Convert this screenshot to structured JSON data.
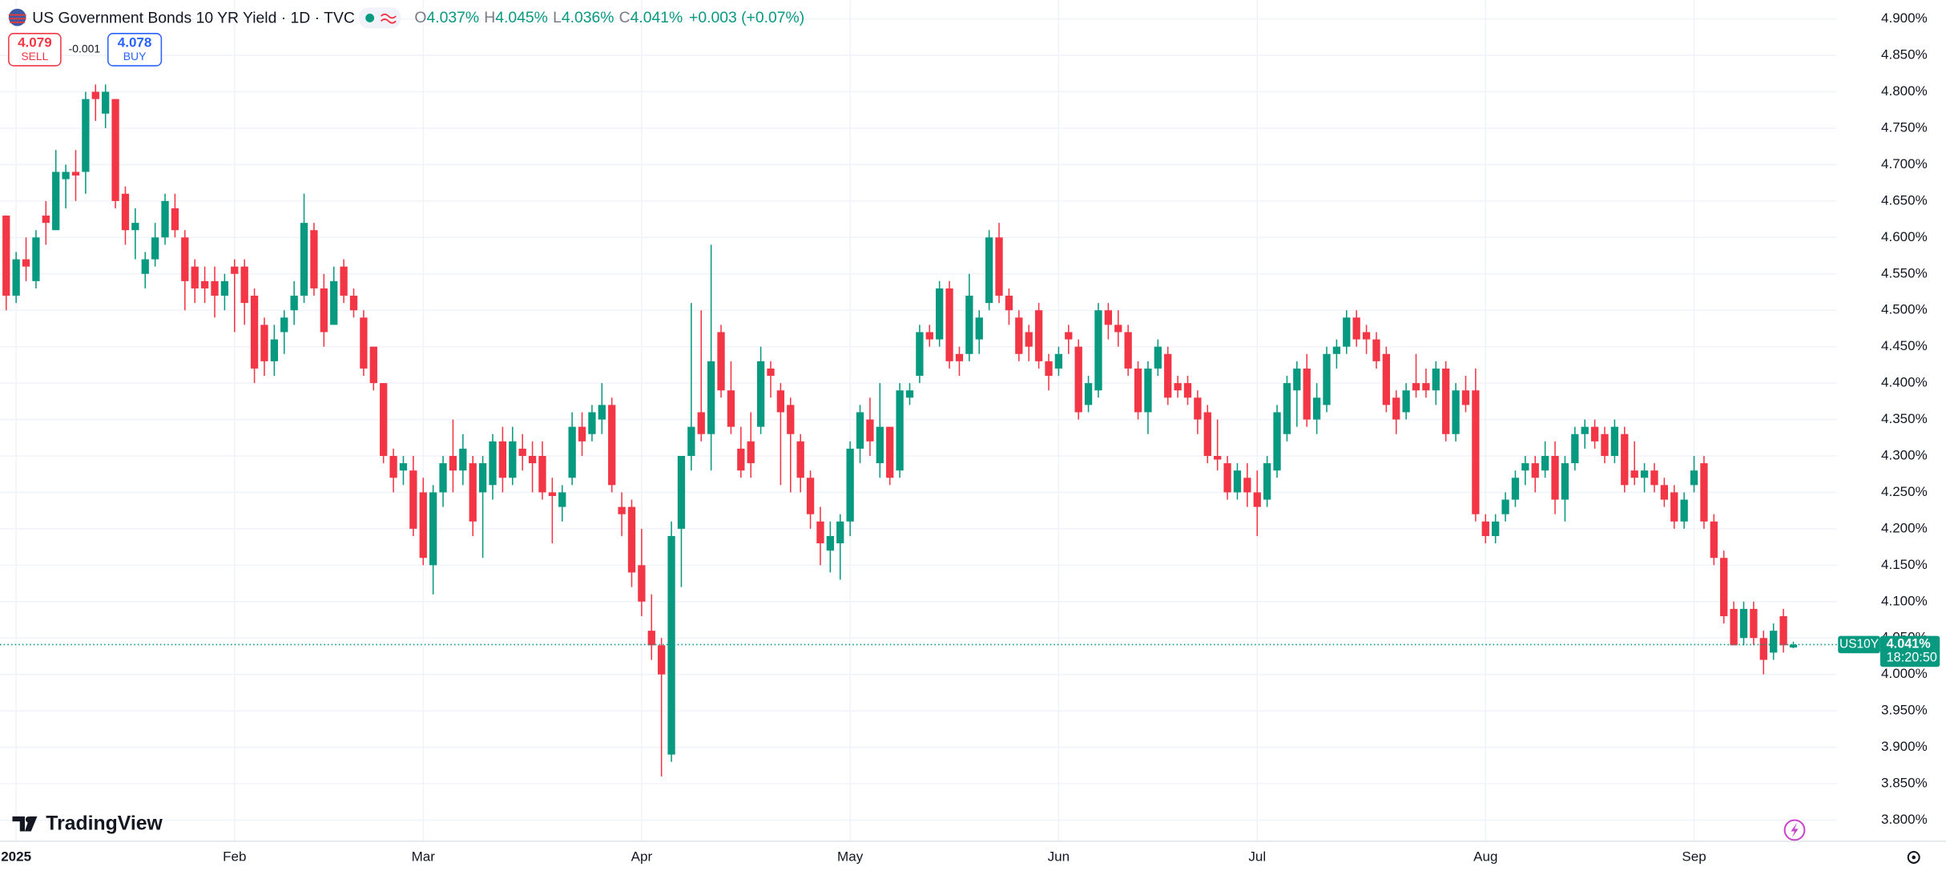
{
  "chart_data": {
    "type": "candlestick",
    "title": "US Government Bonds 10 YR Yield · 1D · TVC",
    "ohlc_legend": {
      "prefixes": [
        "O",
        "H",
        "L",
        "C"
      ],
      "labels": [
        "4.037%",
        "4.045%",
        "4.036%",
        "4.041%"
      ],
      "change": "+0.003 (+0.07%)"
    },
    "trade": {
      "sell_price": 4.079,
      "sell_label": "SELL",
      "spread": -0.001,
      "buy_price": 4.078,
      "buy_label": "BUY"
    },
    "logo": "TradingView",
    "last_price": {
      "symbol": "US10Y",
      "label": "4.041%",
      "countdown": "18:20:50"
    },
    "up_color": "#089981",
    "down_color": "#f23645",
    "ylim": [
      3.771,
      4.926
    ],
    "yticks": [
      {
        "value": 3.8,
        "label": "3.800%"
      },
      {
        "value": 3.85,
        "label": "3.850%"
      },
      {
        "value": 3.9,
        "label": "3.900%"
      },
      {
        "value": 3.95,
        "label": "3.950%"
      },
      {
        "value": 4.0,
        "label": "4.000%"
      },
      {
        "value": 4.05,
        "label": "4.050%"
      },
      {
        "value": 4.1,
        "label": "4.100%"
      },
      {
        "value": 4.15,
        "label": "4.150%"
      },
      {
        "value": 4.2,
        "label": "4.200%"
      },
      {
        "value": 4.25,
        "label": "4.250%"
      },
      {
        "value": 4.3,
        "label": "4.300%"
      },
      {
        "value": 4.35,
        "label": "4.350%"
      },
      {
        "value": 4.4,
        "label": "4.400%"
      },
      {
        "value": 4.45,
        "label": "4.450%"
      },
      {
        "value": 4.5,
        "label": "4.500%"
      },
      {
        "value": 4.55,
        "label": "4.550%"
      },
      {
        "value": 4.6,
        "label": "4.600%"
      },
      {
        "value": 4.65,
        "label": "4.650%"
      },
      {
        "value": 4.7,
        "label": "4.700%"
      },
      {
        "value": 4.75,
        "label": "4.750%"
      },
      {
        "value": 4.8,
        "label": "4.800%"
      },
      {
        "value": 4.85,
        "label": "4.850%"
      },
      {
        "value": 4.9,
        "label": "4.900%"
      }
    ],
    "xticks": [
      {
        "value": 1,
        "label": "2025"
      },
      {
        "value": 23,
        "label": "Feb"
      },
      {
        "value": 42,
        "label": "Mar"
      },
      {
        "value": 64,
        "label": "Apr"
      },
      {
        "value": 85,
        "label": "May"
      },
      {
        "value": 106,
        "label": "Jun"
      },
      {
        "value": 126,
        "label": "Jul"
      },
      {
        "value": 149,
        "label": "Aug"
      },
      {
        "value": 170,
        "label": "Sep"
      }
    ],
    "open": [
      4.63,
      4.52,
      4.57,
      4.54,
      4.63,
      4.61,
      4.68,
      4.69,
      4.69,
      4.8,
      4.77,
      4.79,
      4.66,
      4.61,
      4.55,
      4.57,
      4.6,
      4.64,
      4.6,
      4.56,
      4.54,
      4.54,
      4.52,
      4.56,
      4.56,
      4.52,
      4.48,
      4.43,
      4.47,
      4.5,
      4.52,
      4.61,
      4.53,
      4.48,
      4.56,
      4.52,
      4.49,
      4.45,
      4.4,
      4.3,
      4.28,
      4.28,
      4.25,
      4.15,
      4.25,
      4.3,
      4.28,
      4.29,
      4.25,
      4.26,
      4.32,
      4.27,
      4.31,
      4.3,
      4.3,
      4.25,
      4.23,
      4.27,
      4.34,
      4.33,
      4.35,
      4.37,
      4.23,
      4.23,
      4.15,
      4.06,
      4.04,
      3.89,
      4.2,
      4.3,
      4.36,
      4.33,
      4.47,
      4.39,
      4.31,
      4.32,
      4.34,
      4.42,
      4.39,
      4.37,
      4.32,
      4.27,
      4.21,
      4.17,
      4.18,
      4.21,
      4.31,
      4.35,
      4.29,
      4.34,
      4.28,
      4.38,
      4.41,
      4.47,
      4.46,
      4.53,
      4.44,
      4.44,
      4.46,
      4.51,
      4.6,
      4.52,
      4.49,
      4.47,
      4.5,
      4.43,
      4.42,
      4.47,
      4.45,
      4.37,
      4.39,
      4.5,
      4.48,
      4.47,
      4.42,
      4.36,
      4.42,
      4.44,
      4.4,
      4.4,
      4.38,
      4.36,
      4.3,
      4.29,
      4.25,
      4.27,
      4.25,
      4.24,
      4.28,
      4.33,
      4.39,
      4.42,
      4.35,
      4.37,
      4.44,
      4.45,
      4.49,
      4.47,
      4.46,
      4.44,
      4.38,
      4.36,
      4.4,
      4.4,
      4.39,
      4.42,
      4.33,
      4.39,
      4.39,
      4.21,
      4.19,
      4.22,
      4.24,
      4.28,
      4.29,
      4.28,
      4.3,
      4.24,
      4.29,
      4.33,
      4.34,
      4.33,
      4.3,
      4.33,
      4.28,
      4.27,
      4.28,
      4.26,
      4.25,
      4.21,
      4.26,
      4.29,
      4.21,
      4.16,
      4.09,
      4.05,
      4.09,
      4.05,
      4.03,
      4.08,
      4.037
    ],
    "high": [
      4.63,
      4.58,
      4.6,
      4.61,
      4.65,
      4.72,
      4.7,
      4.72,
      4.8,
      4.81,
      4.81,
      4.79,
      4.67,
      4.64,
      4.58,
      4.62,
      4.66,
      4.66,
      4.61,
      4.57,
      4.56,
      4.56,
      4.55,
      4.57,
      4.57,
      4.53,
      4.49,
      4.48,
      4.5,
      4.54,
      4.66,
      4.62,
      4.55,
      4.56,
      4.57,
      4.53,
      4.5,
      4.45,
      4.4,
      4.31,
      4.3,
      4.3,
      4.27,
      4.26,
      4.3,
      4.35,
      4.33,
      4.3,
      4.3,
      4.33,
      4.34,
      4.34,
      4.33,
      4.32,
      4.32,
      4.27,
      4.26,
      4.36,
      4.36,
      4.37,
      4.4,
      4.38,
      4.25,
      4.24,
      4.2,
      4.11,
      4.05,
      4.21,
      4.3,
      4.51,
      4.5,
      4.59,
      4.48,
      4.43,
      4.34,
      4.36,
      4.45,
      4.43,
      4.4,
      4.38,
      4.33,
      4.28,
      4.23,
      4.21,
      4.22,
      4.32,
      4.37,
      4.38,
      4.4,
      4.34,
      4.4,
      4.4,
      4.48,
      4.48,
      4.54,
      4.54,
      4.45,
      4.55,
      4.5,
      4.61,
      4.62,
      4.53,
      4.5,
      4.48,
      4.51,
      4.44,
      4.45,
      4.48,
      4.46,
      4.41,
      4.51,
      4.51,
      4.5,
      4.48,
      4.43,
      4.43,
      4.46,
      4.45,
      4.41,
      4.41,
      4.39,
      4.37,
      4.35,
      4.3,
      4.29,
      4.29,
      4.28,
      4.3,
      4.37,
      4.41,
      4.43,
      4.44,
      4.4,
      4.45,
      4.46,
      4.5,
      4.5,
      4.48,
      4.47,
      4.45,
      4.39,
      4.4,
      4.44,
      4.42,
      4.43,
      4.43,
      4.4,
      4.41,
      4.42,
      4.22,
      4.22,
      4.25,
      4.28,
      4.3,
      4.3,
      4.32,
      4.32,
      4.3,
      4.34,
      4.35,
      4.35,
      4.34,
      4.35,
      4.34,
      4.32,
      4.29,
      4.29,
      4.27,
      4.26,
      4.25,
      4.3,
      4.3,
      4.22,
      4.17,
      4.1,
      4.1,
      4.1,
      4.06,
      4.07,
      4.09,
      4.045
    ],
    "low": [
      4.5,
      4.51,
      4.54,
      4.53,
      4.59,
      4.61,
      4.64,
      4.65,
      4.66,
      4.76,
      4.75,
      4.64,
      4.59,
      4.57,
      4.53,
      4.56,
      4.59,
      4.6,
      4.5,
      4.51,
      4.51,
      4.49,
      4.5,
      4.47,
      4.48,
      4.4,
      4.41,
      4.41,
      4.44,
      4.48,
      4.51,
      4.52,
      4.45,
      4.48,
      4.51,
      4.49,
      4.41,
      4.39,
      4.29,
      4.25,
      4.26,
      4.19,
      4.15,
      4.11,
      4.23,
      4.25,
      4.26,
      4.19,
      4.16,
      4.24,
      4.25,
      4.26,
      4.28,
      4.25,
      4.24,
      4.18,
      4.21,
      4.26,
      4.3,
      4.32,
      4.33,
      4.25,
      4.19,
      4.12,
      4.08,
      4.02,
      3.86,
      3.88,
      4.12,
      4.28,
      4.32,
      4.28,
      4.38,
      4.33,
      4.27,
      4.27,
      4.33,
      4.38,
      4.26,
      4.25,
      4.25,
      4.2,
      4.15,
      4.14,
      4.13,
      4.19,
      4.29,
      4.3,
      4.27,
      4.26,
      4.27,
      4.37,
      4.4,
      4.45,
      4.45,
      4.42,
      4.41,
      4.43,
      4.44,
      4.5,
      4.51,
      4.48,
      4.43,
      4.43,
      4.42,
      4.39,
      4.41,
      4.44,
      4.35,
      4.36,
      4.38,
      4.46,
      4.45,
      4.41,
      4.35,
      4.33,
      4.41,
      4.37,
      4.38,
      4.37,
      4.33,
      4.29,
      4.28,
      4.24,
      4.24,
      4.23,
      4.19,
      4.23,
      4.27,
      4.32,
      4.34,
      4.34,
      4.33,
      4.36,
      4.42,
      4.44,
      4.45,
      4.44,
      4.42,
      4.36,
      4.33,
      4.35,
      4.38,
      4.38,
      4.37,
      4.32,
      4.32,
      4.36,
      4.21,
      4.18,
      4.18,
      4.21,
      4.23,
      4.26,
      4.25,
      4.27,
      4.22,
      4.21,
      4.28,
      4.31,
      4.31,
      4.29,
      4.29,
      4.25,
      4.26,
      4.25,
      4.25,
      4.23,
      4.2,
      4.2,
      4.25,
      4.2,
      4.15,
      4.07,
      4.04,
      4.04,
      4.04,
      4.0,
      4.02,
      4.03,
      4.036
    ],
    "close": [
      4.52,
      4.57,
      4.56,
      4.6,
      4.62,
      4.69,
      4.69,
      4.685,
      4.79,
      4.79,
      4.8,
      4.65,
      4.61,
      4.62,
      4.57,
      4.6,
      4.65,
      4.61,
      4.54,
      4.53,
      4.53,
      4.52,
      4.54,
      4.55,
      4.51,
      4.42,
      4.43,
      4.46,
      4.49,
      4.52,
      4.62,
      4.53,
      4.47,
      4.54,
      4.52,
      4.5,
      4.42,
      4.4,
      4.3,
      4.27,
      4.29,
      4.2,
      4.16,
      4.25,
      4.29,
      4.28,
      4.31,
      4.21,
      4.29,
      4.32,
      4.27,
      4.32,
      4.3,
      4.29,
      4.25,
      4.245,
      4.25,
      4.34,
      4.32,
      4.36,
      4.37,
      4.26,
      4.22,
      4.14,
      4.1,
      4.04,
      4.0,
      4.19,
      4.3,
      4.34,
      4.33,
      4.43,
      4.39,
      4.34,
      4.28,
      4.29,
      4.43,
      4.41,
      4.36,
      4.33,
      4.27,
      4.22,
      4.18,
      4.19,
      4.21,
      4.31,
      4.36,
      4.32,
      4.34,
      4.27,
      4.39,
      4.39,
      4.47,
      4.46,
      4.53,
      4.43,
      4.43,
      4.52,
      4.49,
      4.6,
      4.52,
      4.5,
      4.44,
      4.45,
      4.43,
      4.41,
      4.44,
      4.46,
      4.36,
      4.4,
      4.5,
      4.48,
      4.47,
      4.42,
      4.36,
      4.42,
      4.45,
      4.38,
      4.39,
      4.38,
      4.35,
      4.3,
      4.295,
      4.25,
      4.28,
      4.25,
      4.23,
      4.29,
      4.36,
      4.4,
      4.42,
      4.35,
      4.38,
      4.44,
      4.45,
      4.49,
      4.46,
      4.46,
      4.43,
      4.37,
      4.35,
      4.39,
      4.39,
      4.39,
      4.42,
      4.33,
      4.39,
      4.37,
      4.22,
      4.19,
      4.21,
      4.24,
      4.27,
      4.29,
      4.27,
      4.3,
      4.24,
      4.29,
      4.33,
      4.34,
      4.32,
      4.3,
      4.34,
      4.26,
      4.27,
      4.28,
      4.26,
      4.24,
      4.21,
      4.24,
      4.28,
      4.21,
      4.16,
      4.08,
      4.04,
      4.09,
      4.05,
      4.02,
      4.06,
      4.04,
      4.041
    ]
  }
}
